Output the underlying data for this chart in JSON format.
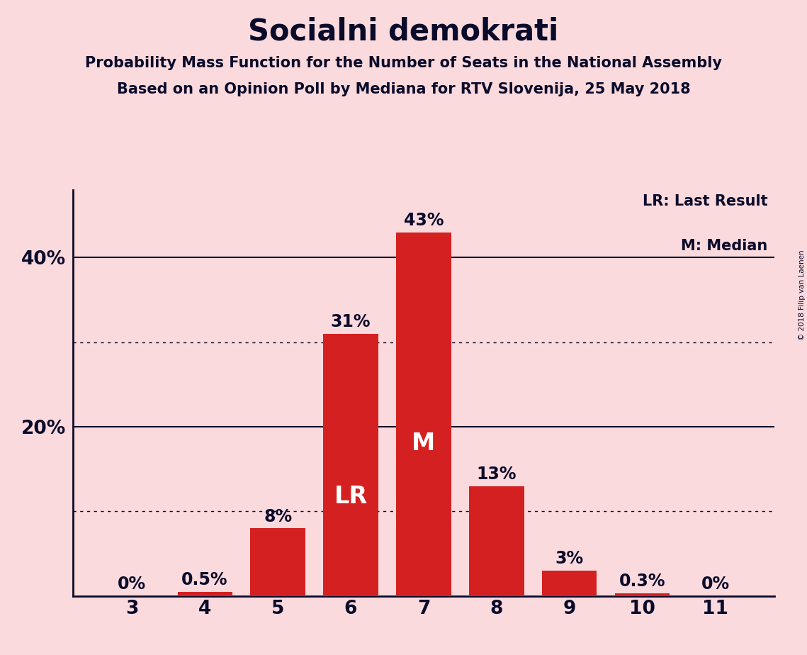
{
  "title": "Socialni demokrati",
  "subtitle1": "Probability Mass Function for the Number of Seats in the National Assembly",
  "subtitle2": "Based on an Opinion Poll by Mediana for RTV Slovenija, 25 May 2018",
  "copyright": "© 2018 Filip van Laenen",
  "categories": [
    3,
    4,
    5,
    6,
    7,
    8,
    9,
    10,
    11
  ],
  "values": [
    0.0,
    0.5,
    8.0,
    31.0,
    43.0,
    13.0,
    3.0,
    0.3,
    0.0
  ],
  "bar_labels": [
    "0%",
    "0.5%",
    "8%",
    "31%",
    "43%",
    "13%",
    "3%",
    "0.3%",
    "0%"
  ],
  "bar_color": "#d42020",
  "background_color": "#fadadd",
  "text_color": "#0a0a2a",
  "lr_bar": 6,
  "median_bar": 7,
  "ylim": [
    0,
    48
  ],
  "ytick_positions": [
    20,
    40
  ],
  "ytick_labels": [
    "20%",
    "40%"
  ],
  "dotted_lines": [
    10,
    30
  ],
  "solid_lines": [
    20,
    40
  ],
  "legend_text1": "LR: Last Result",
  "legend_text2": "M: Median",
  "title_fontsize": 30,
  "subtitle_fontsize": 15,
  "legend_fontsize": 15,
  "bar_label_fontsize": 17,
  "axis_tick_fontsize": 19,
  "inside_label_fontsize": 24
}
